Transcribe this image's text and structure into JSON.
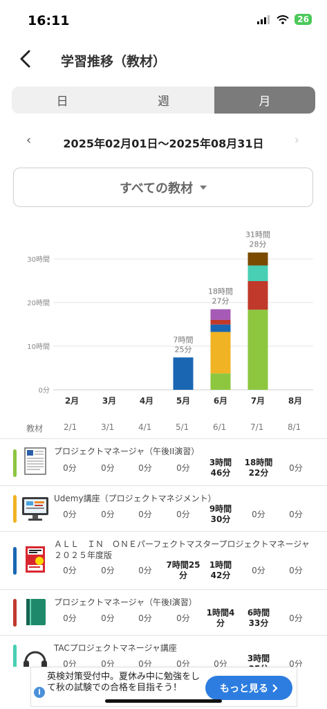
{
  "status": {
    "time": "16:11",
    "battery": "26"
  },
  "header": {
    "title": "学習推移（教材）"
  },
  "tabs": [
    {
      "label": "日",
      "active": false
    },
    {
      "label": "週",
      "active": false
    },
    {
      "label": "月",
      "active": true
    }
  ],
  "range": {
    "prev": "‹",
    "label": "2025年02月01日〜2025年08月31日",
    "next": "›"
  },
  "filter": {
    "label": "すべての教材"
  },
  "chart_data": {
    "type": "bar",
    "stacked": true,
    "categories": [
      "2月",
      "3月",
      "4月",
      "5月",
      "6月",
      "7月",
      "8月"
    ],
    "y_ticks": [
      "0分",
      "10時間",
      "20時間",
      "30時間"
    ],
    "ylim": [
      0,
      30
    ],
    "totals_labels": [
      "",
      "",
      "",
      "7時間25分",
      "18時間27分",
      "31時間28分",
      ""
    ],
    "grid": true,
    "series": [
      {
        "color": "#8dc63f",
        "values": [
          0,
          0,
          0,
          0,
          3.77,
          18.37,
          0
        ]
      },
      {
        "color": "#f0b323",
        "values": [
          0,
          0,
          0,
          0,
          9.5,
          0,
          0
        ]
      },
      {
        "color": "#1a66b3",
        "values": [
          0,
          0,
          0,
          7.42,
          1.7,
          0,
          0
        ]
      },
      {
        "color": "#c0392b",
        "values": [
          0,
          0,
          0,
          0,
          1.07,
          6.55,
          0
        ]
      },
      {
        "color": "#48cfb4",
        "values": [
          0,
          0,
          0,
          0,
          0,
          3.58,
          0
        ]
      },
      {
        "color": "#a55bb5",
        "values": [
          0,
          0,
          0,
          0,
          2.43,
          0,
          0
        ]
      },
      {
        "color": "#7a4a00",
        "values": [
          0,
          0,
          0,
          0,
          0,
          2.98,
          0
        ]
      }
    ]
  },
  "table": {
    "header": "教材",
    "columns": [
      "2/1",
      "3/1",
      "4/1",
      "5/1",
      "6/1",
      "7/1",
      "8/1"
    ],
    "rows": [
      {
        "name": "プロジェクトマネージャ（午後II演習）",
        "color": "#8dc63f",
        "thumb": "document-icon",
        "values": [
          "0分",
          "0分",
          "0分",
          "0分",
          "3時間46分",
          "18時間22分",
          "0分"
        ]
      },
      {
        "name": "Udemy講座（プロジェクトマネジメント）",
        "color": "#f0b323",
        "thumb": "monitor-icon",
        "values": [
          "0分",
          "0分",
          "0分",
          "0分",
          "9時間30分",
          "0分",
          "0分"
        ]
      },
      {
        "name": "ＡＬＬ　ＩＮ　ＯＮＥパーフェクトマスタープロジェクトマネージャ　２０２５年度版",
        "color": "#1a66b3",
        "thumb": "book-cover-icon",
        "values": [
          "0分",
          "0分",
          "0分",
          "7時間25分",
          "1時間42分",
          "0分",
          "0分"
        ]
      },
      {
        "name": "プロジェクトマネージャ（午後I演習）",
        "color": "#c0392b",
        "thumb": "notebook-icon",
        "values": [
          "0分",
          "0分",
          "0分",
          "0分",
          "1時間4分",
          "6時間33分",
          "0分"
        ]
      },
      {
        "name": "TACプロジェクトマネージャ講座",
        "color": "#48cfb4",
        "thumb": "headphones-icon",
        "values": [
          "0分",
          "0分",
          "0分",
          "0分",
          "0分",
          "3時間35分",
          "0分"
        ]
      }
    ]
  },
  "banner": {
    "message": "英検対策受付中。夏休み中に勉強をして秋の試験での合格を目指そう！",
    "button": "もっと見る"
  }
}
